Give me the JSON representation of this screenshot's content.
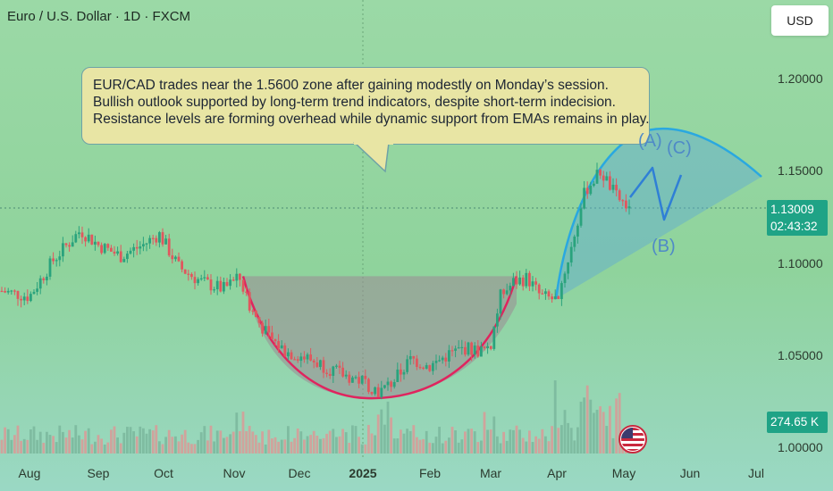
{
  "header": {
    "title": "Euro / U.S. Dollar · 1D · FXCM",
    "currency_button": "USD"
  },
  "callout": {
    "lines": [
      "EUR/CAD trades near the 1.5600 zone after gaining modestly on Monday’s session.",
      "Bullish outlook supported by long-term trend indicators, despite short-term indecision.",
      "Resistance levels are forming overhead while dynamic support from EMAs remains in play."
    ]
  },
  "price_label": {
    "price": "1.13009",
    "countdown": "02:43:32"
  },
  "volume_label": "274.65 K",
  "wave_labels": {
    "a": "(A)",
    "b": "(B)",
    "c": "(C)"
  },
  "colors": {
    "up": "#2aa37d",
    "down": "#e0575e",
    "cup": "#e0245e",
    "arc": "#2aa8e0",
    "wave": "#2f7fd6",
    "price_tag": "#1fa386"
  },
  "icons": [
    "us-flag-icon"
  ],
  "chart_data": {
    "type": "candlestick",
    "symbol": "Euro / U.S. Dollar",
    "timeframe": "1D",
    "source": "FXCM",
    "y_ticks": [
      "1.20000",
      "1.15000",
      "1.10000",
      "1.05000",
      "1.00000"
    ],
    "y_range": [
      0.975,
      1.225
    ],
    "x_ticks": [
      "Aug",
      "Sep",
      "Oct",
      "Nov",
      "Dec",
      "2025",
      "Feb",
      "Mar",
      "Apr",
      "May",
      "Jun",
      "Jul"
    ],
    "last_price": 1.13009,
    "volume_last": "274.65 K",
    "close_by_period": [
      {
        "period": "Aug",
        "close": 1.088
      },
      {
        "period": "Sep",
        "close": 1.118
      },
      {
        "period": "Oct",
        "close": 1.113
      },
      {
        "period": "Nov",
        "close": 1.078
      },
      {
        "period": "Dec",
        "close": 1.048
      },
      {
        "period": "2025",
        "close": 1.036
      },
      {
        "period": "Feb",
        "close": 1.044
      },
      {
        "period": "Mar",
        "close": 1.082
      },
      {
        "period": "Apr",
        "close": 1.096
      },
      {
        "period": "May",
        "close": 1.13
      }
    ],
    "annotations": [
      {
        "type": "cup",
        "from": "Nov",
        "to": "Mar",
        "level": 1.093,
        "low": 1.028
      },
      {
        "type": "elliott-wave",
        "labels": [
          "(A)",
          "(B)",
          "(C)"
        ]
      }
    ]
  }
}
